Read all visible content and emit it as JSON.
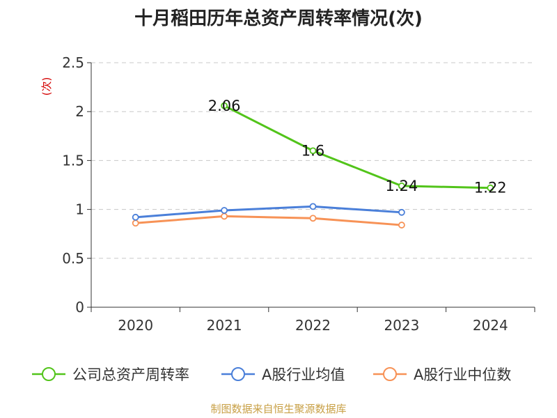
{
  "chart_data": {
    "type": "line",
    "title": "十月稻田历年总资产周转率情况(次)",
    "ylabel": "(次)",
    "xlabel": "",
    "categories": [
      "2020",
      "2021",
      "2022",
      "2023",
      "2024"
    ],
    "ylim": [
      0,
      2.5
    ],
    "yticks": [
      0,
      0.5,
      1,
      1.5,
      2,
      2.5
    ],
    "ytick_labels": [
      "0",
      "0.5",
      "1",
      "1.5",
      "2",
      "2.5"
    ],
    "grid": true,
    "legend_position": "bottom",
    "series": [
      {
        "name": "公司总资产周转率",
        "color": "#52c41a",
        "values": [
          null,
          2.06,
          1.6,
          1.24,
          1.22
        ],
        "labels": [
          "",
          "2.06",
          "1.6",
          "1.24",
          "1.22"
        ]
      },
      {
        "name": "A股行业均值",
        "color": "#4a7fd9",
        "values": [
          0.92,
          0.99,
          1.03,
          0.97,
          null
        ],
        "labels": []
      },
      {
        "name": "A股行业中位数",
        "color": "#f79256",
        "values": [
          0.86,
          0.93,
          0.91,
          0.84,
          null
        ],
        "labels": []
      }
    ]
  },
  "source": "制图数据来自恒生聚源数据库"
}
